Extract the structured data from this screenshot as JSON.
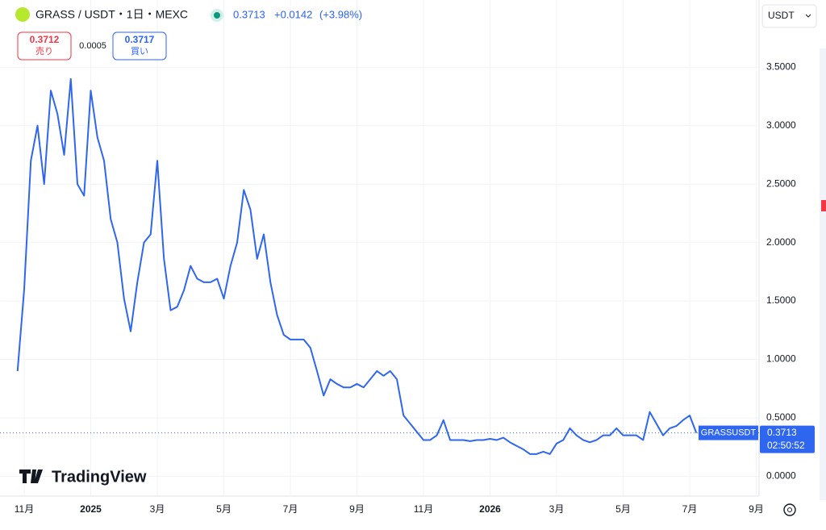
{
  "header": {
    "symbol": "GRASS / USDT・1日・MEXC",
    "last": "0.3713",
    "change": "+0.0142",
    "change_pct": "(+3.98%)"
  },
  "trade": {
    "sell_price": "0.3712",
    "sell_label": "売り",
    "spread": "0.0005",
    "buy_price": "0.3717",
    "buy_label": "買い"
  },
  "currency": "USDT",
  "branding": "TradingView",
  "countdown": "02:50:52",
  "chart_data": {
    "type": "line",
    "categories": [
      null,
      "11月",
      null,
      null,
      null,
      null,
      null,
      null,
      null,
      null,
      null,
      "2025",
      null,
      null,
      null,
      null,
      null,
      null,
      null,
      null,
      null,
      "3月",
      null,
      null,
      null,
      null,
      null,
      null,
      null,
      null,
      null,
      "5月",
      null,
      null,
      null,
      null,
      null,
      null,
      null,
      null,
      null,
      "7月",
      null,
      null,
      null,
      null,
      null,
      null,
      null,
      null,
      null,
      "9月",
      null,
      null,
      null,
      null,
      null,
      null,
      null,
      null,
      null,
      "11月",
      null,
      null,
      null,
      null,
      null,
      null,
      null,
      null,
      null,
      "2026",
      null,
      null,
      null,
      null,
      null,
      null,
      null,
      null,
      null,
      "3月",
      null,
      null,
      null,
      null,
      null,
      null,
      null,
      null,
      null,
      "5月",
      null,
      null,
      null,
      null,
      null,
      null,
      null,
      null,
      null,
      "7月",
      null,
      null,
      null,
      null,
      null,
      null,
      null,
      null,
      null,
      "9月"
    ],
    "series": [
      {
        "name": "GRASSUSDT",
        "color": "#2f66f0",
        "values": [
          0.9,
          1.6,
          2.7,
          3.0,
          2.5,
          3.3,
          3.1,
          2.75,
          3.4,
          2.5,
          2.4,
          3.3,
          2.9,
          2.7,
          2.2,
          2.0,
          1.52,
          1.24,
          1.66,
          2.0,
          2.07,
          2.7,
          1.86,
          1.42,
          1.45,
          1.59,
          1.8,
          1.69,
          1.66,
          1.66,
          1.69,
          1.52,
          1.8,
          2.0,
          2.45,
          2.28,
          1.86,
          2.07,
          1.66,
          1.38,
          1.21,
          1.17,
          1.17,
          1.17,
          1.1,
          0.9,
          0.69,
          0.83,
          0.79,
          0.76,
          0.76,
          0.79,
          0.76,
          0.83,
          0.9,
          0.86,
          0.9,
          0.83,
          0.52,
          0.45,
          0.38,
          0.31,
          0.31,
          0.35,
          0.48,
          0.31,
          0.31,
          0.31,
          0.3,
          0.31,
          0.31,
          0.32,
          0.31,
          0.33,
          0.29,
          0.26,
          0.23,
          0.19,
          0.19,
          0.21,
          0.19,
          0.28,
          0.31,
          0.41,
          0.35,
          0.31,
          0.29,
          0.31,
          0.35,
          0.35,
          0.41,
          0.35,
          0.35,
          0.35,
          0.31,
          0.55,
          0.45,
          0.35,
          0.41,
          0.43,
          0.48,
          0.52,
          0.3713,
          null,
          null,
          null,
          null,
          null,
          null,
          null,
          null,
          null
        ]
      }
    ],
    "ylim": [
      -0.17,
      4.02
    ],
    "yticks": [
      {
        "value": 0,
        "label": "0.0000"
      },
      {
        "value": 0.5,
        "label": "0.5000"
      },
      {
        "value": 1,
        "label": "1.0000"
      },
      {
        "value": 1.5,
        "label": "1.5000"
      },
      {
        "value": 2,
        "label": "2.0000"
      },
      {
        "value": 2.5,
        "label": "2.5000"
      },
      {
        "value": 3,
        "label": "3.0000"
      },
      {
        "value": 3.5,
        "label": "3.5000"
      }
    ],
    "grid": true
  }
}
